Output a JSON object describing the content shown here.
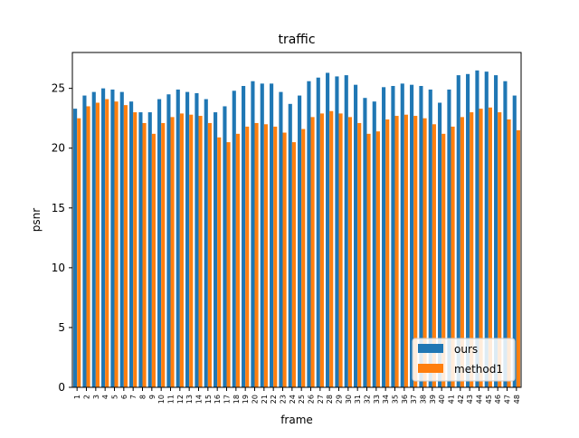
{
  "chart_data": {
    "type": "bar",
    "title": "traffic",
    "xlabel": "frame",
    "ylabel": "psnr",
    "ylim": [
      0,
      28
    ],
    "yticks": [
      0,
      5,
      10,
      15,
      20,
      25
    ],
    "grid": false,
    "legend_position": "lower-right",
    "categories": [
      "1",
      "2",
      "3",
      "4",
      "5",
      "6",
      "7",
      "8",
      "9",
      "10",
      "11",
      "12",
      "13",
      "14",
      "15",
      "16",
      "17",
      "18",
      "19",
      "20",
      "21",
      "22",
      "23",
      "24",
      "25",
      "26",
      "27",
      "28",
      "29",
      "30",
      "31",
      "32",
      "33",
      "34",
      "35",
      "36",
      "37",
      "38",
      "39",
      "40",
      "41",
      "42",
      "43",
      "44",
      "45",
      "46",
      "47",
      "48"
    ],
    "series": [
      {
        "name": "ours",
        "color": "#1f77b4",
        "values": [
          23.3,
          24.4,
          24.7,
          25.0,
          24.9,
          24.7,
          23.9,
          23.0,
          23.0,
          24.1,
          24.5,
          24.9,
          24.7,
          24.6,
          24.1,
          23.0,
          23.5,
          24.8,
          25.2,
          25.6,
          25.4,
          25.4,
          24.7,
          23.7,
          24.4,
          25.6,
          25.9,
          26.3,
          26.0,
          26.1,
          25.3,
          24.2,
          23.9,
          25.1,
          25.2,
          25.4,
          25.3,
          25.2,
          24.9,
          23.8,
          24.9,
          26.1,
          26.2,
          26.5,
          26.4,
          26.1,
          25.6,
          24.4
        ]
      },
      {
        "name": "method1",
        "color": "#ff7f0e",
        "values": [
          22.5,
          23.5,
          23.8,
          24.1,
          23.9,
          23.6,
          23.0,
          22.1,
          21.2,
          22.1,
          22.6,
          22.9,
          22.8,
          22.7,
          22.1,
          20.9,
          20.5,
          21.2,
          21.8,
          22.1,
          22.0,
          21.8,
          21.3,
          20.5,
          21.6,
          22.6,
          22.9,
          23.1,
          22.9,
          22.6,
          22.1,
          21.2,
          21.4,
          22.4,
          22.7,
          22.8,
          22.7,
          22.5,
          22.0,
          21.2,
          21.8,
          22.6,
          23.0,
          23.3,
          23.4,
          23.0,
          22.4,
          21.5
        ]
      }
    ]
  }
}
